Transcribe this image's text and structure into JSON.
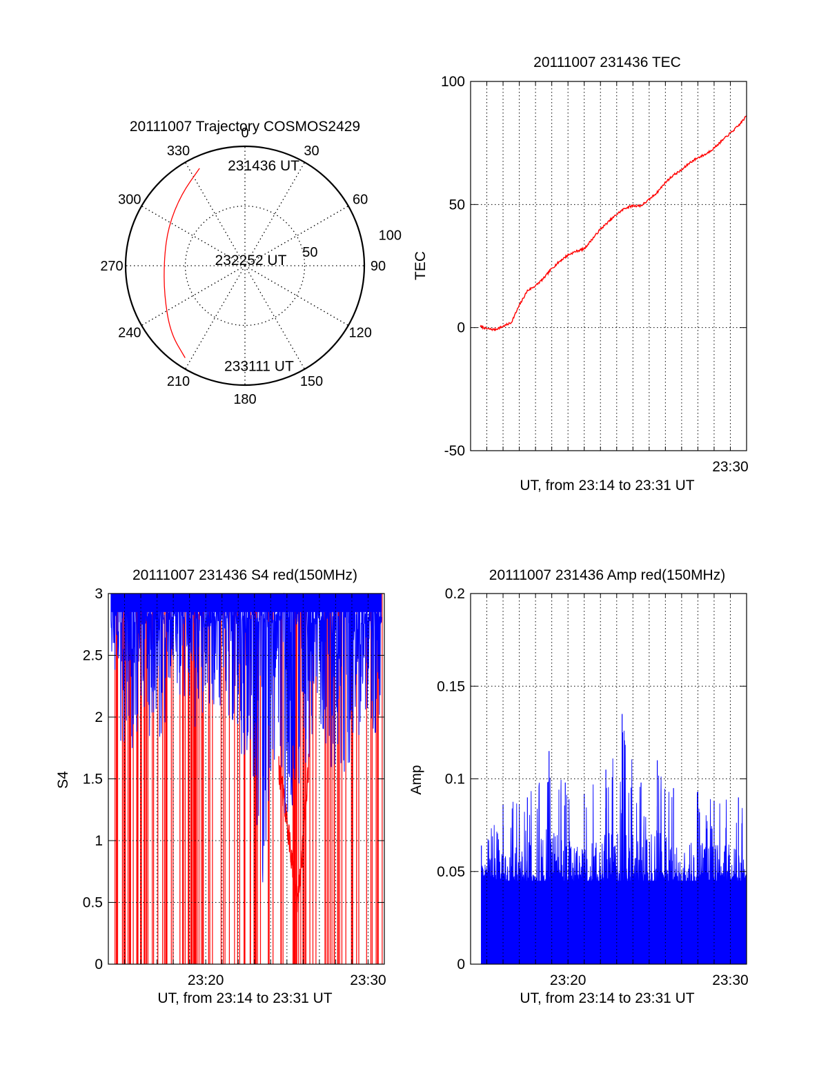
{
  "chart_data": [
    {
      "id": "trajectory",
      "type": "polar",
      "title": "20111007 Trajectory COSMOS2429",
      "azimuth_ticks": [
        0,
        30,
        60,
        90,
        120,
        150,
        180,
        210,
        240,
        270,
        300,
        330
      ],
      "radial_tick_labels": [
        "50",
        "100"
      ],
      "radial_range": [
        0,
        100
      ],
      "radial_grid": [
        50,
        100
      ],
      "grid": true,
      "series": [
        {
          "color": "#ff0000",
          "points": [
            {
              "az": 335,
              "r": 90
            },
            {
              "az": 318,
              "r": 80
            },
            {
              "az": 297,
              "r": 72
            },
            {
              "az": 275,
              "r": 68
            },
            {
              "az": 250,
              "r": 72
            },
            {
              "az": 228,
              "r": 84
            },
            {
              "az": 213,
              "r": 92
            }
          ]
        }
      ],
      "annotations": [
        {
          "text": "231436 UT",
          "az": 2,
          "r": 84
        },
        {
          "text": "232252 UT",
          "az": 300,
          "r": 9
        },
        {
          "text": "233111 UT",
          "az": 180,
          "r": 84
        }
      ]
    },
    {
      "id": "tec",
      "type": "line",
      "title": "20111007 231436 TEC",
      "xlabel": "UT, from 23:14 to 23:31 UT",
      "ylabel": "TEC",
      "xlim": [
        "23:14:00",
        "23:31:00"
      ],
      "ylim": [
        -50,
        100
      ],
      "yticks": [
        -50,
        0,
        50,
        100
      ],
      "xtick_labels": [
        {
          "at": "23:30",
          "label": "23:30"
        }
      ],
      "grid": true,
      "series": [
        {
          "color": "#ff0000",
          "x": [
            "23:14:36",
            "23:15:00",
            "23:15:30",
            "23:16:00",
            "23:16:30",
            "23:17:00",
            "23:17:30",
            "23:18:00",
            "23:18:30",
            "23:19:00",
            "23:19:30",
            "23:20:00",
            "23:20:30",
            "23:21:00",
            "23:21:30",
            "23:22:00",
            "23:22:30",
            "23:23:00",
            "23:23:30",
            "23:24:00",
            "23:24:30",
            "23:25:00",
            "23:25:30",
            "23:26:00",
            "23:26:30",
            "23:27:00",
            "23:27:30",
            "23:28:00",
            "23:28:30",
            "23:29:00",
            "23:29:30",
            "23:30:00",
            "23:30:30",
            "23:31:00"
          ],
          "values": [
            0.5,
            -0.5,
            -0.8,
            0.5,
            2,
            9,
            15,
            17,
            20,
            24,
            27,
            29.5,
            31,
            32,
            36,
            40,
            43,
            46,
            48.5,
            49.5,
            49.5,
            52,
            55,
            59,
            62,
            64,
            67,
            69,
            70.5,
            73,
            76,
            79,
            82,
            86
          ]
        }
      ]
    },
    {
      "id": "s4",
      "type": "line",
      "title": "20111007 231436 S4 red(150MHz)",
      "xlabel": "UT, from 23:14 to 23:31 UT",
      "ylabel": "S4",
      "xlim": [
        "23:14:00",
        "23:31:00"
      ],
      "ylim": [
        0,
        3
      ],
      "yticks": [
        0,
        0.5,
        1,
        1.5,
        2,
        2.5,
        3
      ],
      "ytick_labels": [
        "0",
        "0.5",
        "1",
        "1.5",
        "2",
        "2.5",
        "3"
      ],
      "xtick_labels": [
        {
          "at": "23:20",
          "label": "23:20"
        },
        {
          "at": "23:30",
          "label": "23:30"
        }
      ],
      "grid": true,
      "series": [
        {
          "color": "#0000ff",
          "description_level": "dense near upper limit",
          "x": [
            "23:14:10",
            "23:15:00",
            "23:16:00",
            "23:17:00",
            "23:18:00",
            "23:19:00",
            "23:20:00",
            "23:21:00",
            "23:22:00",
            "23:23:00",
            "23:23:30",
            "23:24:00",
            "23:25:00",
            "23:26:00",
            "23:27:00",
            "23:28:00",
            "23:29:00",
            "23:30:00",
            "23:30:50"
          ],
          "values": [
            2.4,
            1.9,
            2.3,
            2.1,
            2.5,
            2.3,
            2.2,
            2.4,
            2.0,
            1.7,
            0.95,
            1.8,
            1.5,
            1.9,
            2.2,
            1.8,
            2.0,
            2.3,
            2.1
          ]
        },
        {
          "color": "#ff0000",
          "x": [
            "23:24:30",
            "23:24:50",
            "23:25:10",
            "23:25:25",
            "23:25:40",
            "23:26:00",
            "23:26:20"
          ],
          "values": [
            1.6,
            1.3,
            1.0,
            0.7,
            0.5,
            1.0,
            1.6
          ]
        }
      ]
    },
    {
      "id": "amp",
      "type": "bar",
      "title": "20111007 231436 Amp red(150MHz)",
      "xlabel": "UT, from 23:14 to 23:31 UT",
      "ylabel": "Amp",
      "xlim": [
        "23:14:00",
        "23:31:00"
      ],
      "ylim": [
        0,
        0.2
      ],
      "yticks": [
        0,
        0.05,
        0.1,
        0.15,
        0.2
      ],
      "ytick_labels": [
        "0",
        "0.05",
        "0.1",
        "0.15",
        "0.2"
      ],
      "xtick_labels": [
        {
          "at": "23:20",
          "label": "23:20"
        },
        {
          "at": "23:30",
          "label": "23:30"
        }
      ],
      "grid": true,
      "series": [
        {
          "color": "#0000ff",
          "baseline": 0.045,
          "x": [
            "23:14:40",
            "23:16:00",
            "23:17:30",
            "23:18:50",
            "23:19:50",
            "23:21:00",
            "23:22:20",
            "23:23:20",
            "23:24:30",
            "23:25:30",
            "23:26:30",
            "23:28:00",
            "23:29:00",
            "23:30:30"
          ],
          "values": [
            0.064,
            0.086,
            0.09,
            0.115,
            0.098,
            0.092,
            0.105,
            0.135,
            0.098,
            0.11,
            0.095,
            0.093,
            0.088,
            0.09
          ]
        }
      ]
    }
  ]
}
